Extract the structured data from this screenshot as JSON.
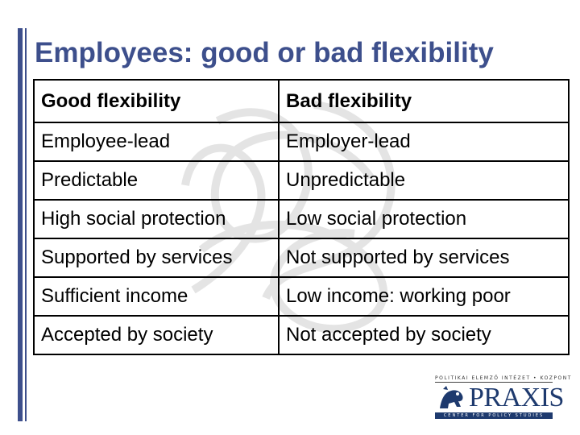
{
  "slide": {
    "title": "Employees: good or bad flexibility",
    "accent_color": "#3d4f8c"
  },
  "table": {
    "headers": [
      "Good flexibility",
      "Bad flexibility"
    ],
    "rows": [
      [
        "Employee-lead",
        "Employer-lead"
      ],
      [
        "Predictable",
        "Unpredictable"
      ],
      [
        "High social protection",
        "Low social protection"
      ],
      [
        "Supported by services",
        "Not supported by services"
      ],
      [
        "Sufficient income",
        "Low income: working poor"
      ],
      [
        "Accepted by society",
        "Not accepted by society"
      ]
    ]
  },
  "logo": {
    "top_text": "POLITIKAI ELEMZŐ INTÉZET • KOZPONT",
    "word": "PRAXIS",
    "bottom_text": "CENTER FOR POLICY STUDIES",
    "icon": "lion-icon",
    "color": "#1e3a6e"
  }
}
